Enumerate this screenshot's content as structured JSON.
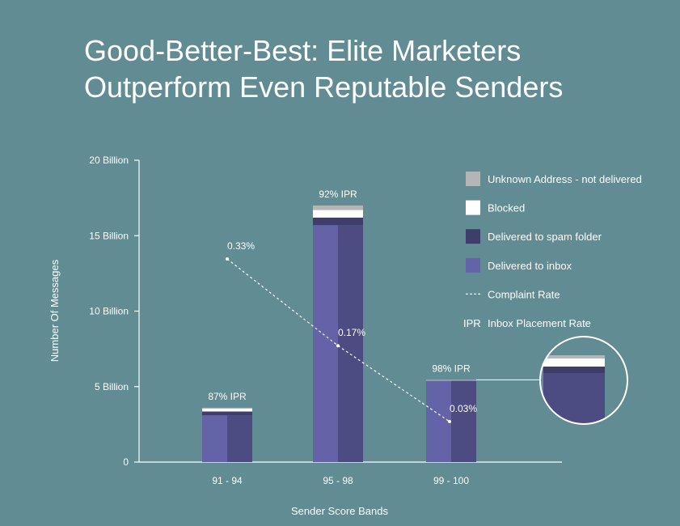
{
  "colors": {
    "background": "#628c93",
    "unknown": "#b5b5b5",
    "blocked": "#ffffff",
    "spam": "#3e3d6b",
    "inbox_light": "#6563a7",
    "inbox_dark": "#4d4c82"
  },
  "chart_data": {
    "type": "bar",
    "title_lines": [
      "Good-Better-Best: Elite Marketers",
      "Outperform Even Reputable Senders"
    ],
    "xlabel": "Sender Score Bands",
    "ylabel": "Number Of Messages",
    "categories": [
      "91 - 94",
      "95 - 98",
      "99 - 100"
    ],
    "y_ticks": [
      {
        "value": 0,
        "label": "0"
      },
      {
        "value": 5,
        "label": "5 Billion"
      },
      {
        "value": 10,
        "label": "10 Billion"
      },
      {
        "value": 15,
        "label": "15 Billion"
      },
      {
        "value": 20,
        "label": "20 Billion"
      }
    ],
    "ylim": [
      0,
      20
    ],
    "units": "billion messages",
    "stacked": true,
    "series": [
      {
        "key": "inbox",
        "name": "Delivered to inbox",
        "values": [
          3.1,
          15.7,
          5.4
        ]
      },
      {
        "key": "spam",
        "name": "Delivered to spam folder",
        "values": [
          0.25,
          0.5,
          0.03
        ]
      },
      {
        "key": "blocked",
        "name": "Blocked",
        "values": [
          0.2,
          0.5,
          0.01
        ]
      },
      {
        "key": "unknown",
        "name": "Unknown Address - not delivered",
        "values": [
          0.05,
          0.3,
          0.01
        ]
      }
    ],
    "ipr_labels": [
      "87% IPR",
      "92% IPR",
      "98% IPR"
    ],
    "complaint_rate": {
      "name": "Complaint Rate",
      "values": [
        0.33,
        0.17,
        0.03
      ],
      "labels": [
        "0.33%",
        "0.17%",
        "0.03%"
      ]
    },
    "legend": {
      "placement": "top-right",
      "items": [
        {
          "key": "unknown",
          "type": "swatch",
          "label": "Unknown Address - not delivered"
        },
        {
          "key": "blocked",
          "type": "swatch",
          "label": "Blocked"
        },
        {
          "key": "spam",
          "type": "swatch",
          "label": "Delivered to spam folder"
        },
        {
          "key": "inbox",
          "type": "swatch",
          "label": "Delivered to inbox"
        },
        {
          "key": "complaint",
          "type": "dash",
          "label": "Complaint Rate"
        },
        {
          "key": "ipr",
          "type": "text",
          "marker": "IPR",
          "label": "Inbox Placement Rate"
        }
      ]
    },
    "inset": {
      "description_free": true
    }
  }
}
